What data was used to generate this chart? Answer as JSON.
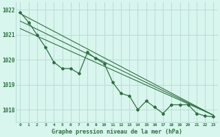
{
  "title": "Graphe pression niveau de la mer (hPa)",
  "bg_color": "#d8f5ee",
  "grid_color": "#b8ddd4",
  "line_color": "#2d6e3e",
  "marker_color": "#2d6e3e",
  "x_labels": [
    "0",
    "1",
    "2",
    "3",
    "4",
    "5",
    "6",
    "7",
    "8",
    "9",
    "10",
    "11",
    "12",
    "13",
    "14",
    "15",
    "16",
    "17",
    "18",
    "19",
    "20",
    "21",
    "22",
    "23"
  ],
  "ylim": [
    1017.5,
    1022.3
  ],
  "yticks": [
    1018,
    1019,
    1020,
    1021,
    1022
  ],
  "main_data": [
    1021.9,
    1021.5,
    1021.0,
    1020.5,
    1019.9,
    1019.65,
    1019.65,
    1019.45,
    1020.3,
    1020.05,
    1019.85,
    1019.1,
    1018.65,
    1018.55,
    1018.0,
    1018.35,
    1018.1,
    1017.85,
    1018.2,
    1018.2,
    1018.2,
    1017.85,
    1017.75,
    1017.72
  ],
  "trend_lines": [
    [
      1021.85,
      1017.78
    ],
    [
      1021.55,
      1017.78
    ],
    [
      1021.25,
      1017.78
    ]
  ],
  "figsize": [
    3.2,
    2.0
  ],
  "dpi": 100
}
